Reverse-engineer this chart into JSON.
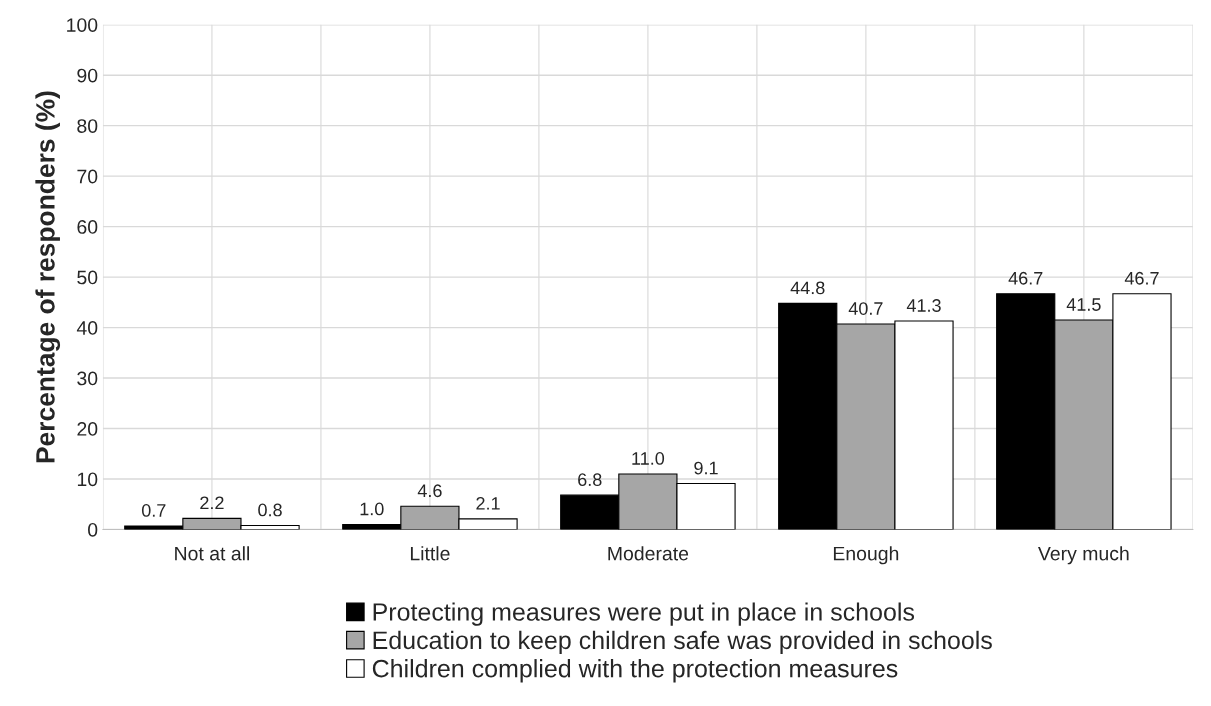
{
  "chart_data": {
    "type": "bar",
    "ylabel": "Percentage of responders (%)",
    "categories": [
      "Not at all",
      "Little",
      "Moderate",
      "Enough",
      "Very much"
    ],
    "series": [
      {
        "name": "Protecting measures were put in place in schools",
        "color": "#000000",
        "values": [
          0.7,
          1.0,
          6.8,
          44.8,
          46.7
        ],
        "value_labels": [
          "0.7",
          "1.0",
          "6.8",
          "44.8",
          "46.7"
        ]
      },
      {
        "name": "Education to keep children safe was provided in schools",
        "color": "#a6a6a6",
        "values": [
          2.2,
          4.6,
          11.0,
          40.7,
          41.5
        ],
        "value_labels": [
          "2.2",
          "4.6",
          "11.0",
          "40.7",
          "41.5"
        ]
      },
      {
        "name": "Children complied with the protection measures",
        "color": "#ffffff",
        "values": [
          0.8,
          2.1,
          9.1,
          41.3,
          46.7
        ],
        "value_labels": [
          "0.8",
          "2.1",
          "9.1",
          "41.3",
          "46.7"
        ]
      }
    ],
    "ylim": [
      0,
      100
    ],
    "yticks": [
      0,
      10,
      20,
      30,
      40,
      50,
      60,
      70,
      80,
      90,
      100
    ],
    "grid": true,
    "legend": "bottom"
  }
}
